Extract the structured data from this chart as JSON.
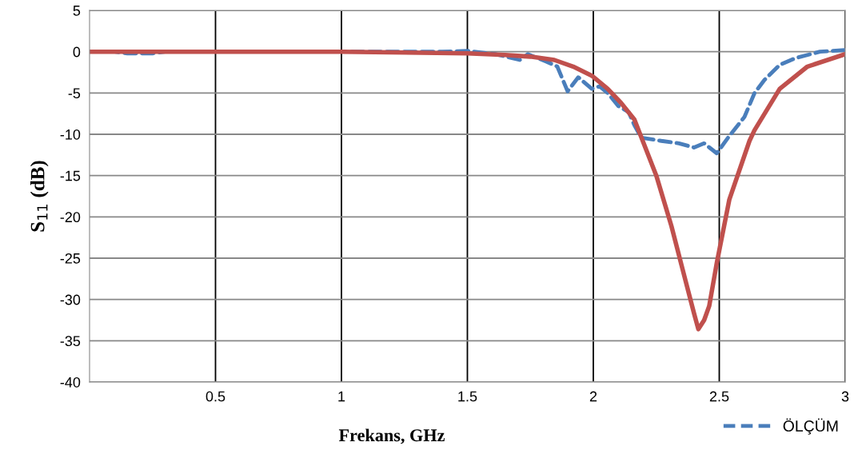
{
  "chart_data": {
    "type": "line",
    "xlabel": "Frekans, GHz",
    "ylabel": "S$_{11}$ (dB)",
    "xlim": [
      0,
      3
    ],
    "ylim": [
      -40,
      5
    ],
    "xticks": [
      0.5,
      1,
      1.5,
      2,
      2.5,
      3
    ],
    "yticks": [
      -40,
      -35,
      -30,
      -25,
      -20,
      -15,
      -10,
      -5,
      0,
      5
    ],
    "grid": true,
    "legend": "bottom right",
    "marker": "none",
    "series": [
      {
        "name": "ÖLÇÜM",
        "color": "#4a7ebb",
        "line_style": "dashed",
        "x": [
          0,
          0.1,
          0.15,
          0.25,
          0.3,
          0.6,
          1,
          1.4,
          1.5,
          1.613,
          1.708,
          1.74,
          1.813,
          1.857,
          1.898,
          1.94,
          1.994,
          2.025,
          2.057,
          2.1,
          2.14,
          2.163,
          2.19,
          2.27,
          2.34,
          2.4,
          2.44,
          2.49,
          2.54,
          2.6,
          2.64,
          2.68,
          2.74,
          2.8,
          2.9,
          3
        ],
        "values": [
          0,
          0,
          -0.2,
          -0.2,
          0,
          0,
          0,
          0,
          0.1,
          -0.3,
          -1.0,
          -0.3,
          -1.2,
          -1.8,
          -4.8,
          -3.1,
          -4.5,
          -4.2,
          -5.0,
          -6.6,
          -7.3,
          -8.9,
          -10.4,
          -10.8,
          -11.1,
          -11.6,
          -11.1,
          -12.3,
          -10.2,
          -7.9,
          -5.0,
          -3.4,
          -1.6,
          -0.8,
          0,
          0.2
        ]
      },
      {
        "color": "#c0504d",
        "line_style": "solid",
        "x": [
          0,
          0.5,
          1,
          1.5,
          1.65,
          1.75,
          1.845,
          1.92,
          1.994,
          2.057,
          2.11,
          2.163,
          2.25,
          2.31,
          2.365,
          2.4,
          2.417,
          2.44,
          2.46,
          2.49,
          2.54,
          2.62,
          2.64,
          2.74,
          2.85,
          3
        ],
        "values": [
          0,
          0,
          0,
          -0.2,
          -0.4,
          -0.6,
          -1.0,
          -1.8,
          -2.9,
          -4.5,
          -6.2,
          -8.2,
          -15,
          -21.1,
          -27.6,
          -31.7,
          -33.6,
          -32.5,
          -30.8,
          -25.6,
          -17.9,
          -10.8,
          -9.5,
          -4.5,
          -1.8,
          -0.3
        ]
      }
    ]
  }
}
